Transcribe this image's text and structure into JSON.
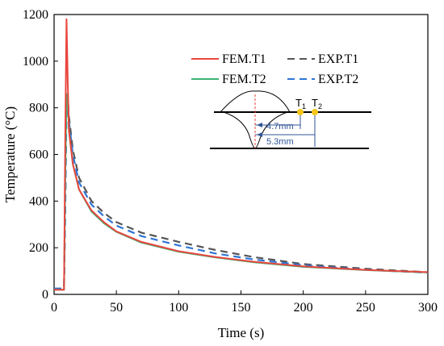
{
  "chart_data": {
    "type": "line",
    "title": "",
    "xlabel": "Time (s)",
    "ylabel": "Temperature (°C)",
    "xlim": [
      0,
      300
    ],
    "ylim": [
      0,
      1200
    ],
    "xticks": [
      0,
      50,
      100,
      150,
      200,
      250,
      300
    ],
    "yticks": [
      0,
      200,
      400,
      600,
      800,
      1000,
      1200
    ],
    "grid": false,
    "legend_position": "top-right",
    "series": [
      {
        "name": "FEM.T1",
        "color": "#e8463e",
        "dash": "solid",
        "x": [
          0,
          8,
          9,
          10,
          11,
          12,
          15,
          20,
          30,
          40,
          50,
          70,
          100,
          130,
          160,
          200,
          250,
          300
        ],
        "y": [
          20,
          20,
          700,
          1180,
          900,
          700,
          560,
          450,
          360,
          310,
          270,
          225,
          185,
          160,
          140,
          120,
          105,
          95
        ]
      },
      {
        "name": "FEM.T2",
        "color": "#3cb371",
        "dash": "solid",
        "x": [
          0,
          8,
          9,
          10,
          11,
          12,
          15,
          20,
          30,
          40,
          50,
          70,
          100,
          130,
          160,
          200,
          250,
          300
        ],
        "y": [
          20,
          20,
          500,
          860,
          820,
          700,
          560,
          450,
          355,
          305,
          268,
          222,
          183,
          158,
          138,
          118,
          104,
          94
        ]
      },
      {
        "name": "EXP.T1",
        "color": "#555555",
        "dash": "long-dash",
        "x": [
          0,
          8,
          9,
          10,
          11,
          12,
          15,
          20,
          30,
          40,
          50,
          70,
          100,
          130,
          160,
          200,
          250,
          300
        ],
        "y": [
          25,
          25,
          400,
          820,
          840,
          760,
          620,
          500,
          400,
          350,
          310,
          265,
          225,
          190,
          160,
          130,
          110,
          95
        ]
      },
      {
        "name": "EXP.T2",
        "color": "#2e75d6",
        "dash": "long-dash",
        "x": [
          0,
          8,
          9,
          10,
          11,
          12,
          15,
          20,
          30,
          40,
          50,
          70,
          100,
          130,
          160,
          200,
          250,
          300
        ],
        "y": [
          25,
          25,
          380,
          800,
          830,
          740,
          600,
          480,
          385,
          335,
          295,
          250,
          210,
          175,
          150,
          125,
          105,
          93
        ]
      }
    ],
    "legend_layout": [
      [
        "FEM.T1",
        "EXP.T1"
      ],
      [
        "FEM.T2",
        "EXP.T2"
      ]
    ],
    "inset": {
      "sensor_1": "T",
      "sensor_1_sub": "1",
      "sensor_2": "T",
      "sensor_2_sub": "2",
      "distance_1": "4.7mm",
      "distance_2": "5.3mm",
      "sensor_color": "#f5c518",
      "dimension_color": "#2f5597",
      "centerline_color": "#e8463e"
    }
  }
}
